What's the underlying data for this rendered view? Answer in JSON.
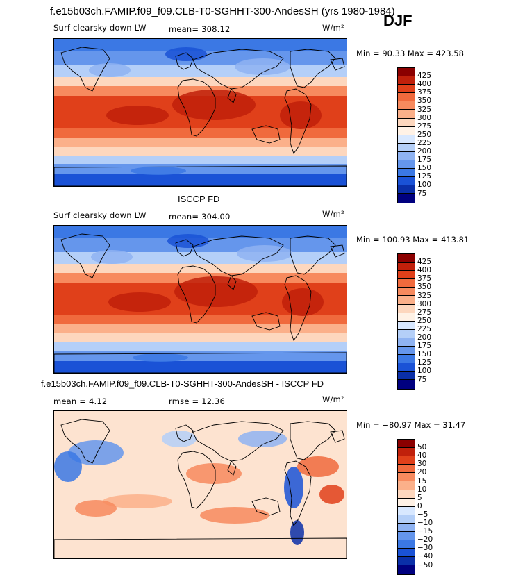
{
  "top_title": "f.e15b03ch.FAMIP.f09_f09.CLB-T0-SGHHT-300-AndesSH (yrs 1980-1984)",
  "season": "DJF",
  "panels": [
    {
      "heading": "",
      "variable": "Surf clearsky down LW",
      "stat": "mean=  308.12",
      "units": "W/m²",
      "minmax": "Min =   90.33 Max = 423.58",
      "colorbar": {
        "labels": [
          "425",
          "400",
          "375",
          "350",
          "325",
          "300",
          "275",
          "250",
          "225",
          "200",
          "175",
          "150",
          "125",
          "100",
          "75"
        ],
        "colors": [
          "#8b0000",
          "#c0200b",
          "#e0401a",
          "#f06a3d",
          "#f78a5e",
          "#fbb08a",
          "#fdd7be",
          "#fff2e6",
          "#d8e8ff",
          "#b4cff8",
          "#8fb3f2",
          "#6596ec",
          "#3b78e4",
          "#1a52d6",
          "#0a2fa8",
          "#00007f"
        ]
      },
      "map_field": "sw_positive"
    },
    {
      "heading": "ISCCP FD",
      "variable": "Surf clearsky down LW",
      "stat": "mean=  304.00",
      "units": "W/m²",
      "minmax": "Min = 100.93 Max = 413.81",
      "colorbar": {
        "labels": [
          "425",
          "400",
          "375",
          "350",
          "325",
          "300",
          "275",
          "250",
          "225",
          "200",
          "175",
          "150",
          "125",
          "100",
          "75"
        ],
        "colors": [
          "#8b0000",
          "#c0200b",
          "#e0401a",
          "#f06a3d",
          "#f78a5e",
          "#fbb08a",
          "#fdd7be",
          "#fff2e6",
          "#d8e8ff",
          "#b4cff8",
          "#8fb3f2",
          "#6596ec",
          "#3b78e4",
          "#1a52d6",
          "#0a2fa8",
          "#00007f"
        ]
      },
      "map_field": "sw_positive"
    },
    {
      "heading": "f.e15b03ch.FAMIP.f09_f09.CLB-T0-SGHHT-300-AndesSH - ISCCP FD",
      "variable": "mean =    4.12",
      "stat": "rmse =   12.36",
      "units": "W/m²",
      "minmax": "Min = −80.97 Max =   31.47",
      "colorbar": {
        "labels": [
          "50",
          "40",
          "30",
          "20",
          "15",
          "10",
          "5",
          "0",
          "−5",
          "−10",
          "−15",
          "−20",
          "−30",
          "−40",
          "−50"
        ],
        "colors": [
          "#8b0000",
          "#c0200b",
          "#e0401a",
          "#f06a3d",
          "#f78a5e",
          "#fbb08a",
          "#fdd7be",
          "#fff2e6",
          "#d8e8ff",
          "#b4cff8",
          "#8fb3f2",
          "#6596ec",
          "#3b78e4",
          "#1a52d6",
          "#0a2fa8",
          "#00007f"
        ]
      },
      "map_field": "difference"
    }
  ]
}
